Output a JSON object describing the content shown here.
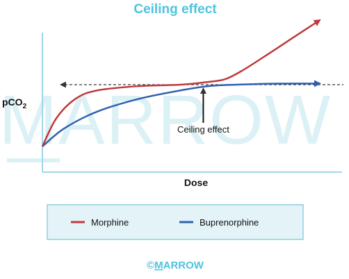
{
  "watermark": {
    "text": "MARROW"
  },
  "footer": {
    "copyright_symbol": "©",
    "brand_first": "M",
    "brand_rest": "ARROW"
  },
  "colors": {
    "title": "#4fc3dd",
    "axis": "#9fd8e6",
    "morphine": "#c0383a",
    "buprenorphine": "#2f5fb0",
    "ceiling_line": "#333333",
    "legend_bg": "#e3f3f8",
    "legend_border": "#8fd0e0",
    "watermark": "#dcf1f6",
    "footer": "#4fc3dd"
  },
  "chart_data": {
    "type": "line",
    "title": "Ceiling effect",
    "xlabel": "Dose",
    "ylabel_main": "pCO",
    "ylabel_sub": "2",
    "xlim": [
      0,
      100
    ],
    "ylim": [
      0,
      100
    ],
    "series": [
      {
        "name": "Morphine",
        "color": "#c0383a",
        "x": [
          0,
          5,
          12,
          20,
          35,
          50,
          60,
          66,
          72,
          80,
          90,
          100
        ],
        "y": [
          18,
          38,
          52,
          58,
          61,
          62,
          64,
          66,
          72,
          82,
          95,
          108
        ]
      },
      {
        "name": "Buprenorphine",
        "color": "#2f5fb0",
        "x": [
          0,
          8,
          20,
          35,
          50,
          60,
          70,
          80,
          90,
          100
        ],
        "y": [
          18,
          31,
          43,
          52,
          58,
          61,
          62,
          62.6,
          62.8,
          62.8
        ]
      }
    ],
    "ceiling_level": 62,
    "annotation": {
      "text": "Ceiling effect",
      "x": 58,
      "y": 62
    },
    "grid": false,
    "legend_position": "bottom",
    "legend": [
      "Morphine",
      "Buprenorphine"
    ]
  }
}
